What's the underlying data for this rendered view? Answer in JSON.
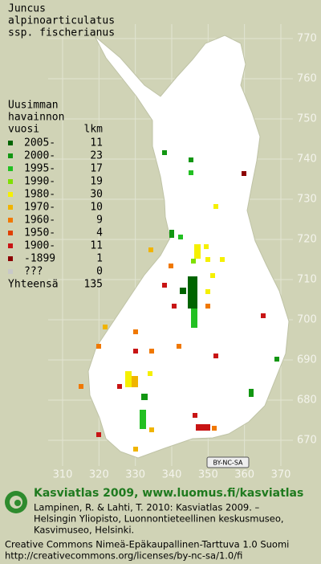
{
  "title": [
    "Juncus",
    "alpinoarticulatus",
    "ssp. fischerianus"
  ],
  "legend": {
    "heading": [
      "Uusimman",
      "havainnon",
      "vuosi"
    ],
    "count_heading": "lkm",
    "rows": [
      {
        "label": "2005-",
        "count": 11,
        "color": "#006400"
      },
      {
        "label": "2000-",
        "count": 23,
        "color": "#129612"
      },
      {
        "label": "1995-",
        "count": 17,
        "color": "#22c022"
      },
      {
        "label": "1990-",
        "count": 19,
        "color": "#7fe000"
      },
      {
        "label": "1980-",
        "count": 30,
        "color": "#f5f000"
      },
      {
        "label": "1970-",
        "count": 10,
        "color": "#f0b400"
      },
      {
        "label": "1960-",
        "count": 9,
        "color": "#f07800"
      },
      {
        "label": "1950-",
        "count": 4,
        "color": "#e04000"
      },
      {
        "label": "1900-",
        "count": 11,
        "color": "#c81414"
      },
      {
        "label": "-1899",
        "count": 1,
        "color": "#8c0000"
      },
      {
        "label": "???",
        "count": 0,
        "color": "#c8c8c8"
      }
    ],
    "total_label": "Yhteensä",
    "total": 135
  },
  "x_ticks": [
    310,
    320,
    330,
    340,
    350,
    360,
    370
  ],
  "y_ticks": [
    670,
    680,
    690,
    700,
    710,
    720,
    730,
    740,
    750,
    760,
    770
  ],
  "license_badge": "BY-NC-SA",
  "footer": {
    "site": "Kasviatlas 2009, www.luomus.fi/kasviatlas",
    "citation": [
      "Lampinen, R. & Lahti, T. 2010: Kasviatlas 2009. –",
      "Helsingin Yliopisto, Luonnontieteellinen keskusmuseo,",
      "Kasvimuseo, Helsinki."
    ],
    "license": [
      "Creative Commons Nimeä-Epäkaupallinen-Tarttuva 1.0 Suomi",
      "http://creativecommons.org/licenses/by-nc-sa/1.0/fi"
    ]
  }
}
